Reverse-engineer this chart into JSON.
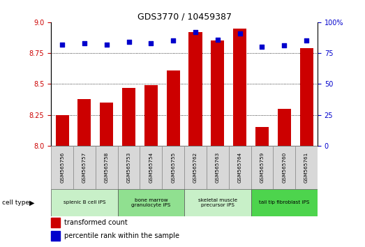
{
  "title": "GDS3770 / 10459387",
  "samples": [
    "GSM565756",
    "GSM565757",
    "GSM565758",
    "GSM565753",
    "GSM565754",
    "GSM565755",
    "GSM565762",
    "GSM565763",
    "GSM565764",
    "GSM565759",
    "GSM565760",
    "GSM565761"
  ],
  "transformed_count": [
    8.25,
    8.38,
    8.35,
    8.47,
    8.49,
    8.61,
    8.92,
    8.85,
    8.95,
    8.15,
    8.3,
    8.79
  ],
  "percentile_rank": [
    82,
    83,
    82,
    84,
    83,
    85,
    92,
    86,
    91,
    80,
    81,
    85
  ],
  "cell_types": [
    {
      "label": "splenic B cell iPS",
      "start": 0,
      "end": 3,
      "color": "#c8f0c8"
    },
    {
      "label": "bone marrow\ngranulocyte iPS",
      "start": 3,
      "end": 6,
      "color": "#90e090"
    },
    {
      "label": "skeletal muscle\nprecursor iPS",
      "start": 6,
      "end": 9,
      "color": "#c8f0c8"
    },
    {
      "label": "tail tip fibroblast iPS",
      "start": 9,
      "end": 12,
      "color": "#4dd44d"
    }
  ],
  "ylim_left": [
    8.0,
    9.0
  ],
  "ylim_right": [
    0,
    100
  ],
  "yticks_left": [
    8.0,
    8.25,
    8.5,
    8.75,
    9.0
  ],
  "yticks_right": [
    0,
    25,
    50,
    75,
    100
  ],
  "bar_color": "#cc0000",
  "dot_color": "#0000cc",
  "bar_width": 0.6,
  "legend_labels": [
    "transformed count",
    "percentile rank within the sample"
  ],
  "legend_colors": [
    "#cc0000",
    "#0000cc"
  ],
  "cell_type_label": "cell type",
  "ylabel_right": "%",
  "sample_box_color": "#d8d8d8",
  "title_fontsize": 9,
  "axis_fontsize": 7,
  "label_fontsize": 6,
  "legend_fontsize": 7
}
